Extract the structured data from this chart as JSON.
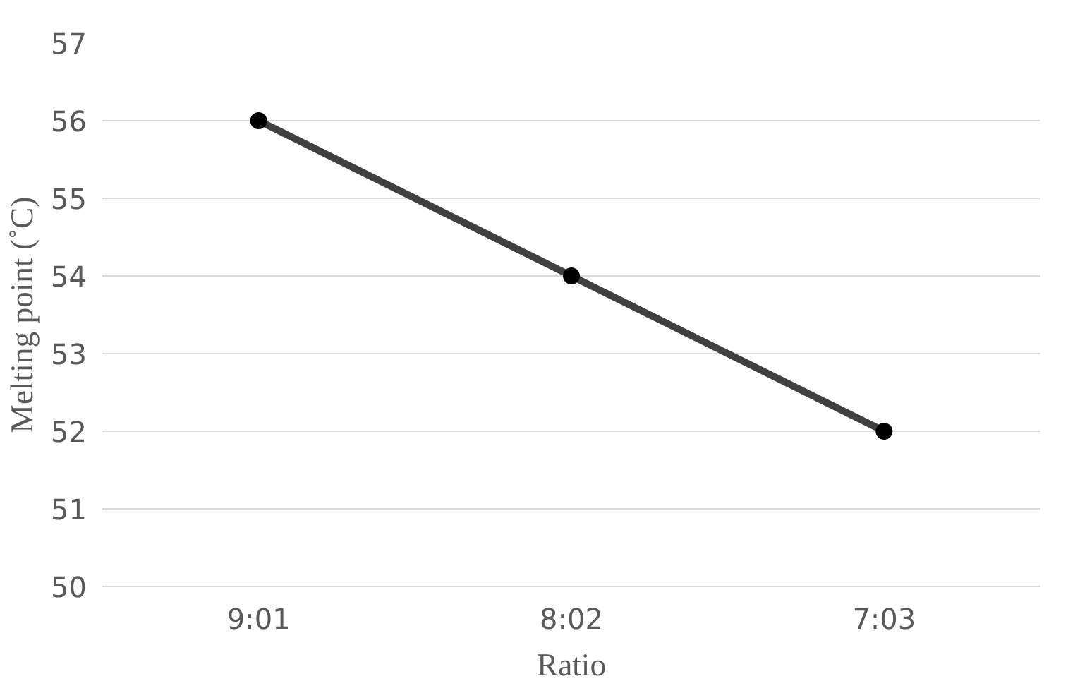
{
  "chart_data": {
    "type": "line",
    "xlabel": "Ratio",
    "ylabel": "Melting point (˚C)",
    "categories": [
      "9:01",
      "8:02",
      "7:03"
    ],
    "series": [
      {
        "color": "#404040",
        "values": [
          56,
          54,
          52
        ]
      }
    ],
    "ylim": [
      50,
      57
    ],
    "yticks": [
      50,
      51,
      52,
      53,
      54,
      55,
      56,
      57
    ],
    "grid": "y",
    "marker": "circle",
    "line_style": "solid"
  }
}
